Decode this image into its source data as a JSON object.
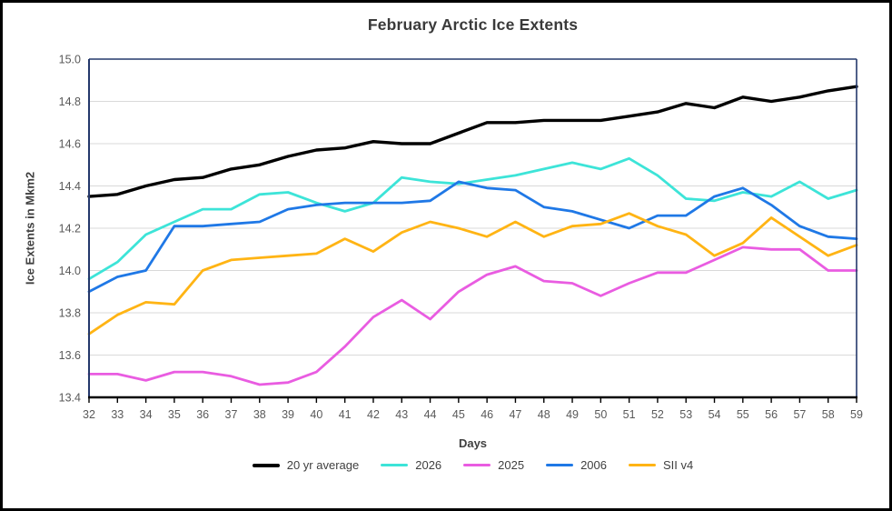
{
  "chart_data": {
    "type": "line",
    "title": "February Arctic Ice Extents",
    "xlabel": "Days",
    "ylabel": "Ice Extents in Mkm2",
    "xlim": [
      32,
      59
    ],
    "ylim": [
      13.4,
      15.0
    ],
    "x": [
      32,
      33,
      34,
      35,
      36,
      37,
      38,
      39,
      40,
      41,
      42,
      43,
      44,
      45,
      46,
      47,
      48,
      49,
      50,
      51,
      52,
      53,
      54,
      55,
      56,
      57,
      58,
      59
    ],
    "yticks": [
      15.0,
      14.8,
      14.6,
      14.4,
      14.2,
      14.0,
      13.8,
      13.6,
      13.4
    ],
    "grid": "horizontal",
    "legend_position": "bottom",
    "colors": {
      "gridline": "#d9d9d9",
      "plot_border": "#24386b",
      "x_axis": "#000000",
      "tick_label": "#595959",
      "title_text": "#3a3a3a",
      "axis_title_text": "#404040"
    },
    "series": [
      {
        "name": "20 yr average",
        "color": "#000000",
        "width": 3.4,
        "values": [
          14.35,
          14.36,
          14.4,
          14.43,
          14.44,
          14.48,
          14.5,
          14.54,
          14.57,
          14.58,
          14.61,
          14.6,
          14.6,
          14.65,
          14.7,
          14.7,
          14.71,
          14.71,
          14.71,
          14.73,
          14.75,
          14.79,
          14.77,
          14.82,
          14.8,
          14.82,
          14.85,
          14.87
        ]
      },
      {
        "name": "2026",
        "color": "#3de4d8",
        "width": 2.8,
        "values": [
          13.96,
          14.04,
          14.17,
          14.23,
          14.29,
          14.29,
          14.36,
          14.37,
          14.32,
          14.28,
          14.32,
          14.44,
          14.42,
          14.41,
          14.43,
          14.45,
          14.48,
          14.51,
          14.48,
          14.53,
          14.45,
          14.34,
          14.33,
          14.37,
          14.35,
          14.42,
          14.34,
          14.38
        ]
      },
      {
        "name": "2025",
        "color": "#e95ce1",
        "width": 2.8,
        "values": [
          13.51,
          13.51,
          13.48,
          13.52,
          13.52,
          13.5,
          13.46,
          13.47,
          13.52,
          13.64,
          13.78,
          13.86,
          13.77,
          13.9,
          13.98,
          14.02,
          13.95,
          13.94,
          13.88,
          13.94,
          13.99,
          13.99,
          14.05,
          14.11,
          14.1,
          14.1,
          14.0,
          14.0
        ]
      },
      {
        "name": "2006",
        "color": "#1f78e6",
        "width": 2.8,
        "values": [
          13.9,
          13.97,
          14.0,
          14.21,
          14.21,
          14.22,
          14.23,
          14.29,
          14.31,
          14.32,
          14.32,
          14.32,
          14.33,
          14.42,
          14.39,
          14.38,
          14.3,
          14.28,
          14.24,
          14.2,
          14.26,
          14.26,
          14.35,
          14.39,
          14.31,
          14.21,
          14.16,
          14.15
        ]
      },
      {
        "name": "SII v4",
        "color": "#ffb414",
        "width": 2.8,
        "values": [
          13.7,
          13.79,
          13.85,
          13.84,
          14.0,
          14.05,
          14.06,
          14.07,
          14.08,
          14.15,
          14.09,
          14.18,
          14.23,
          14.2,
          14.16,
          14.23,
          14.16,
          14.21,
          14.22,
          14.27,
          14.21,
          14.17,
          14.07,
          14.13,
          14.25,
          14.16,
          14.07,
          14.12
        ]
      }
    ]
  }
}
